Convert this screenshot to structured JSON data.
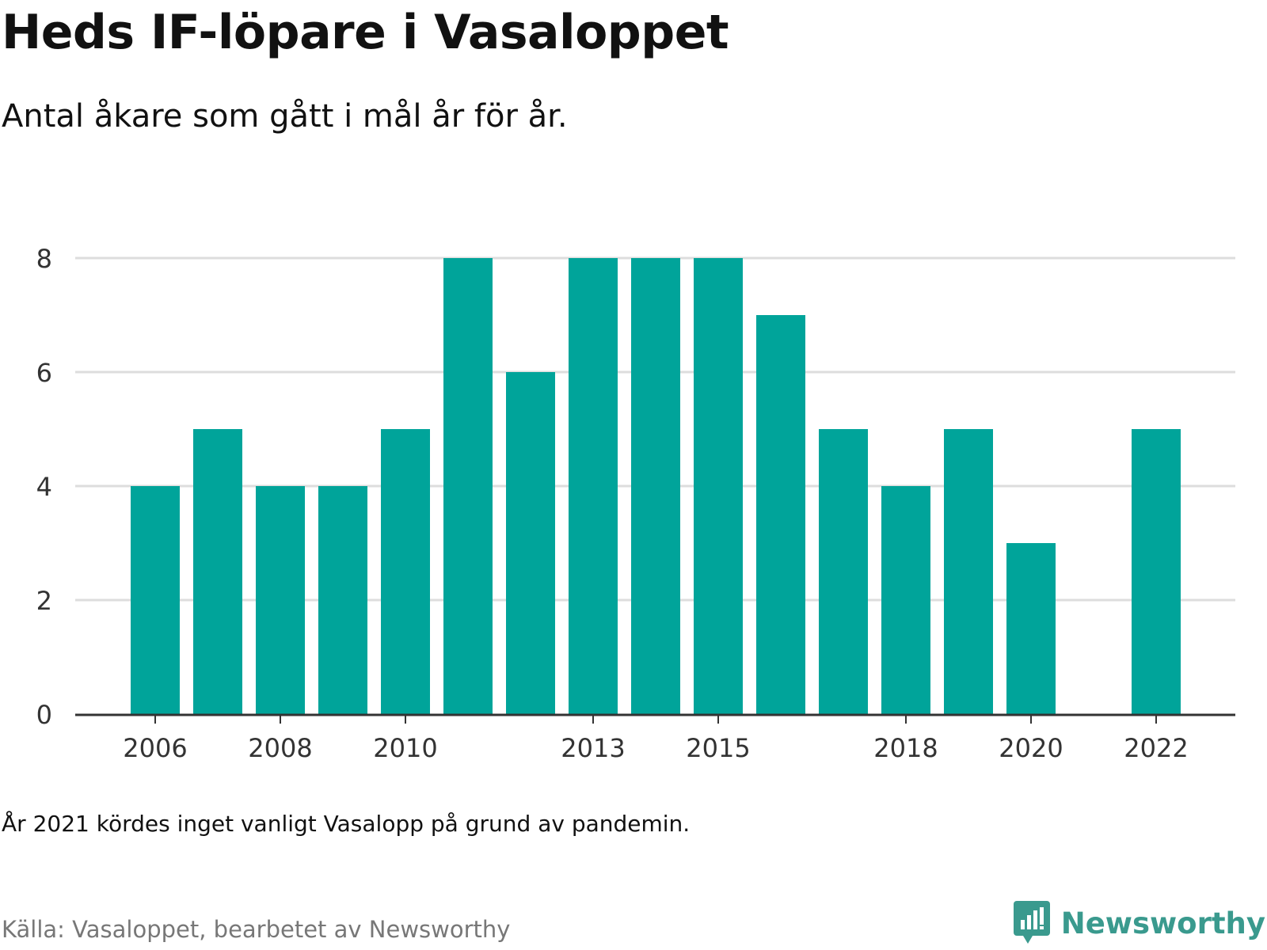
{
  "header": {
    "title": "Heds IF-löpare i Vasaloppet",
    "subtitle": "Antal åkare som gått i mål år för år."
  },
  "footer": {
    "note": "År 2021 kördes inget vanligt Vasalopp på grund av pandemin.",
    "source": "Källa: Vasaloppet, bearbetet av Newsworthy",
    "brand": "Newsworthy",
    "brand_icon": "newsworthy-logo-icon"
  },
  "colors": {
    "bar": "#00a49a",
    "grid": "#dddddd",
    "axis": "#333333",
    "brand": "#3a9a8e"
  },
  "chart_data": {
    "type": "bar",
    "categories": [
      "2006",
      "2007",
      "2008",
      "2009",
      "2010",
      "2011",
      "2012",
      "2013",
      "2014",
      "2015",
      "2016",
      "2017",
      "2018",
      "2019",
      "2020",
      "2021",
      "2022"
    ],
    "values": [
      4,
      5,
      4,
      4,
      5,
      8,
      6,
      8,
      8,
      8,
      7,
      5,
      4,
      5,
      3,
      null,
      5
    ],
    "x_tick_labels": [
      "2006",
      "2008",
      "2010",
      "2013",
      "2015",
      "2018",
      "2020",
      "2022"
    ],
    "y_ticks": [
      0,
      2,
      4,
      6,
      8
    ],
    "ylim": [
      0,
      8
    ],
    "grid": true,
    "legend": "none",
    "title": "Heds IF-löpare i Vasaloppet",
    "subtitle": "Antal åkare som gått i mål år för år."
  }
}
